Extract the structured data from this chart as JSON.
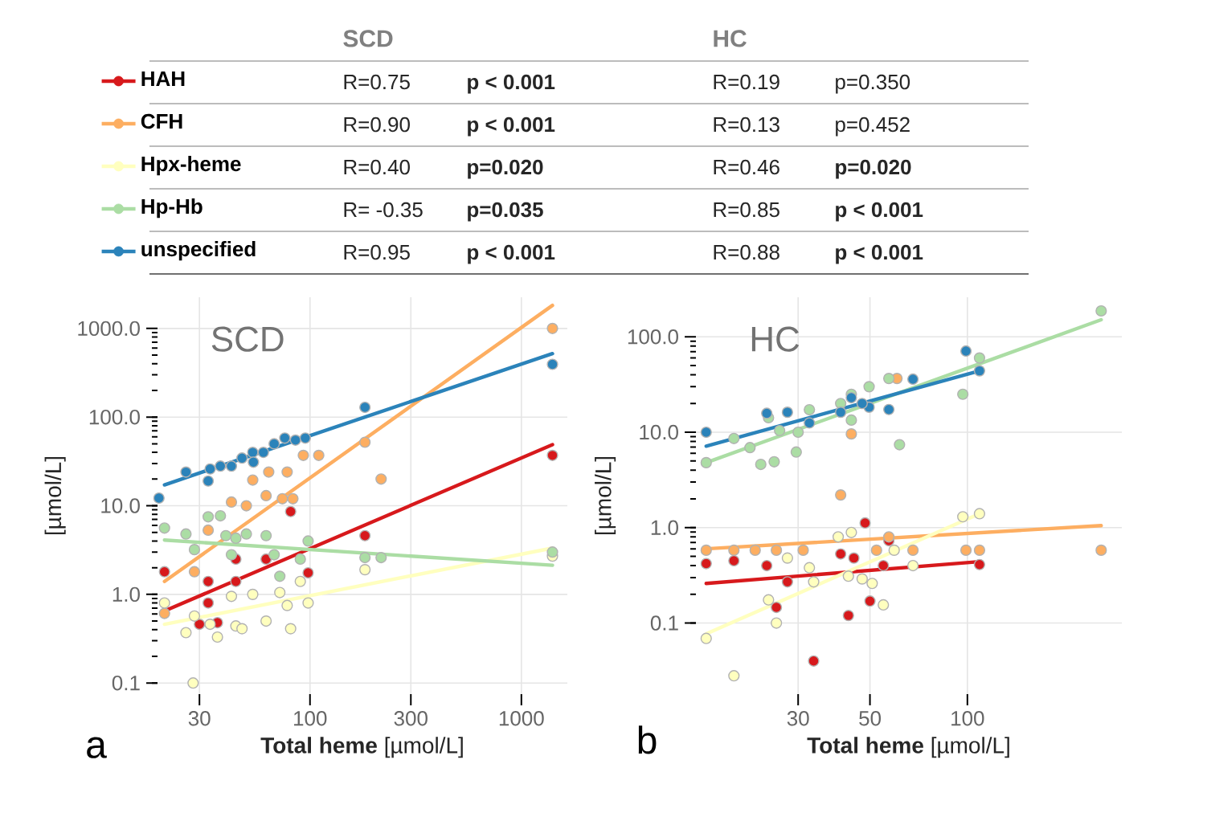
{
  "chart_data": [
    {
      "type": "other",
      "annotations": [
        "SCD",
        "HC",
        "R=0.75",
        "**p < 0.001**",
        "R=0.19",
        "p=0.350",
        "R=0.90",
        "**p < 0.001**",
        "R=0.13",
        "p=0.452",
        "R=0.40",
        "**p=0.020**",
        "R=0.46",
        "**p=0.020**",
        "R=  -0.35",
        "**p=0.035**",
        "R=0.85",
        "**p < 0.001**",
        "R=0.95",
        "**p < 0.001**",
        "R=0.88",
        "**p < 0.001**"
      ]
    },
    {
      "type": "scatter",
      "title": "SCD",
      "xlabel": "**Total heme** [µmol/L]",
      "ylabel": "[µmol/L]",
      "annotations": [
        "a"
      ],
      "log": "xy",
      "xlim": [
        19,
        1650
      ],
      "ylim": [
        0.075,
        2250
      ],
      "xticks": [
        30,
        100,
        300,
        1000
      ],
      "yticks": [
        0.1,
        {
          "value": 1,
          "label": "1.0"
        },
        {
          "value": 10,
          "label": "10.0"
        },
        {
          "value": 100,
          "label": "100.0"
        },
        {
          "value": 1000,
          "label": "1000.0"
        }
      ],
      "grid": true,
      "legend": "top",
      "series": [
        {
          "name": "HAH",
          "marker": "circle",
          "color": "#d7191c",
          "x": [
            20.5,
            30,
            33,
            33,
            36.5,
            44.6,
            44.6,
            62,
            81,
            98,
            182,
            1403
          ],
          "values": [
            1.8,
            0.46,
            1.4,
            0.8,
            0.48,
            2.5,
            1.4,
            2.5,
            8.6,
            1.75,
            4.6,
            37
          ]
        },
        {
          "name": "CFH",
          "marker": "circle",
          "color": "#fdae61",
          "x": [
            20.5,
            28.4,
            33,
            42.5,
            50,
            53.6,
            63.8,
            78,
            62,
            74,
            83,
            93,
            110,
            182,
            217,
            1403
          ],
          "values": [
            0.61,
            1.8,
            5.3,
            11,
            10,
            19.5,
            24,
            24,
            13,
            12,
            12,
            37,
            37,
            52,
            20,
            1000
          ]
        },
        {
          "name": "Hpx-heme",
          "marker": "circle",
          "color": "#ffffbf",
          "x": [
            20.5,
            25.9,
            28.4,
            28,
            33.7,
            36.5,
            42.5,
            44.6,
            47.7,
            53.6,
            62,
            72,
            78,
            81,
            90,
            98,
            182,
            1403
          ],
          "values": [
            0.8,
            0.37,
            0.57,
            0.1,
            0.46,
            0.33,
            0.95,
            0.44,
            0.41,
            1.0,
            0.5,
            1.05,
            0.75,
            0.41,
            1.4,
            0.8,
            1.9,
            2.7
          ]
        },
        {
          "name": "Hp-Hb",
          "marker": "circle",
          "color": "#abdda4",
          "x": [
            20.5,
            25.9,
            33,
            37.7,
            40,
            44.6,
            50,
            62,
            67.7,
            72,
            90,
            98,
            182,
            217,
            1403,
            28.4,
            42.5
          ],
          "values": [
            5.6,
            4.8,
            7.5,
            7.7,
            4.6,
            4.3,
            4.8,
            4.6,
            2.8,
            1.6,
            2.5,
            4.0,
            2.6,
            2.6,
            3.0,
            3.2,
            2.8
          ]
        },
        {
          "name": "unspecified",
          "marker": "circle",
          "color": "#2b83ba",
          "x": [
            19.3,
            25.9,
            33.7,
            37.7,
            42.5,
            47.7,
            53.6,
            60.2,
            67.7,
            76,
            85.4,
            95,
            33,
            54,
            182,
            1403
          ],
          "values": [
            12.2,
            24,
            26,
            28,
            28,
            34.5,
            40,
            40,
            50,
            58,
            55,
            58,
            19,
            31,
            129,
            394
          ]
        },
        {
          "type": "line",
          "color": "#d7191c",
          "x": [
            20.5,
            1403
          ],
          "values": [
            0.65,
            48.9
          ]
        },
        {
          "type": "line",
          "color": "#fdae61",
          "x": [
            20.5,
            1403
          ],
          "values": [
            1.4,
            1820
          ]
        },
        {
          "type": "line",
          "color": "#ffffbf",
          "x": [
            20.5,
            1403
          ],
          "values": [
            0.46,
            3.33
          ]
        },
        {
          "type": "line",
          "color": "#abdda4",
          "x": [
            20.5,
            1403
          ],
          "values": [
            4.1,
            2.13
          ]
        },
        {
          "type": "line",
          "color": "#2b83ba",
          "x": [
            20.5,
            1403
          ],
          "values": [
            17.2,
            520
          ]
        }
      ]
    },
    {
      "type": "scatter",
      "title": "HC",
      "xlabel": "**Total heme** [µmol/L]",
      "ylabel": "[µmol/L]",
      "annotations": [
        "b"
      ],
      "log": "xy",
      "xlim": [
        14.5,
        300
      ],
      "ylim": [
        0.018,
        260
      ],
      "xticks": [
        30,
        50,
        100
      ],
      "yticks": [
        0.1,
        {
          "value": 1,
          "label": "1.0"
        },
        {
          "value": 10,
          "label": "10.0"
        },
        {
          "value": 100,
          "label": "100.0"
        }
      ],
      "grid": true,
      "series": [
        {
          "color": "#d7191c",
          "marker": "circle",
          "x": [
            15.6,
            19,
            24,
            27.8,
            25.7,
            40.6,
            42.9,
            44.6,
            48.3,
            50,
            55,
            109,
            33.5,
            57.2
          ],
          "values": [
            0.42,
            0.45,
            0.4,
            0.27,
            0.146,
            0.53,
            0.12,
            0.48,
            1.12,
            0.17,
            0.4,
            0.41,
            0.04,
            0.73
          ]
        },
        {
          "color": "#fdae61",
          "marker": "circle",
          "x": [
            15.6,
            19,
            22.1,
            25.7,
            31.1,
            40.6,
            43.8,
            52.4,
            60.6,
            67.9,
            99,
            109,
            259,
            57.2
          ],
          "values": [
            0.58,
            0.58,
            0.58,
            0.58,
            0.58,
            2.2,
            9.6,
            0.58,
            36.6,
            0.58,
            0.58,
            0.58,
            0.58,
            0.8
          ]
        },
        {
          "color": "#ffffbf",
          "marker": "circle",
          "x": [
            15.6,
            19,
            24.3,
            25.7,
            27.8,
            32.5,
            33.5,
            39.9,
            43.8,
            42.9,
            47.3,
            50.8,
            55,
            59.4,
            67.9,
            96.8,
            109
          ],
          "values": [
            0.069,
            0.028,
            0.175,
            0.1,
            0.48,
            0.38,
            0.27,
            0.8,
            0.89,
            0.31,
            0.29,
            0.26,
            0.155,
            0.58,
            0.4,
            1.3,
            1.4
          ]
        },
        {
          "color": "#abdda4",
          "marker": "circle",
          "x": [
            15.6,
            19,
            21.3,
            23,
            25.3,
            24.3,
            26.3,
            29.6,
            30,
            32.5,
            43.8,
            49.7,
            57.2,
            61.7,
            96.8,
            109,
            259,
            40.6,
            43.8
          ],
          "values": [
            4.8,
            8.6,
            6.9,
            4.6,
            4.9,
            14.2,
            10.4,
            6.2,
            10,
            17.2,
            13.4,
            30,
            36.6,
            7.4,
            25,
            60,
            187,
            20,
            25
          ]
        },
        {
          "color": "#2b83ba",
          "marker": "circle",
          "x": [
            15.6,
            24,
            27.8,
            32.5,
            40.6,
            43.8,
            49.7,
            57.2,
            67.9,
            99,
            109,
            47.3
          ],
          "values": [
            10,
            15.8,
            16.2,
            12.5,
            16.2,
            23,
            18.3,
            17.3,
            36,
            71,
            44,
            20
          ]
        },
        {
          "type": "line",
          "color": "#d7191c",
          "x": [
            15.6,
            109
          ],
          "values": [
            0.26,
            0.44
          ]
        },
        {
          "type": "line",
          "color": "#fdae61",
          "x": [
            15.6,
            259
          ],
          "values": [
            0.6,
            1.05
          ]
        },
        {
          "type": "line",
          "color": "#ffffbf",
          "x": [
            15.6,
            109
          ],
          "values": [
            0.077,
            1.4
          ]
        },
        {
          "type": "line",
          "color": "#abdda4",
          "x": [
            15.6,
            259
          ],
          "values": [
            4.8,
            151
          ]
        },
        {
          "type": "line",
          "color": "#2b83ba",
          "x": [
            15.6,
            109
          ],
          "values": [
            7.15,
            44
          ]
        }
      ]
    }
  ]
}
